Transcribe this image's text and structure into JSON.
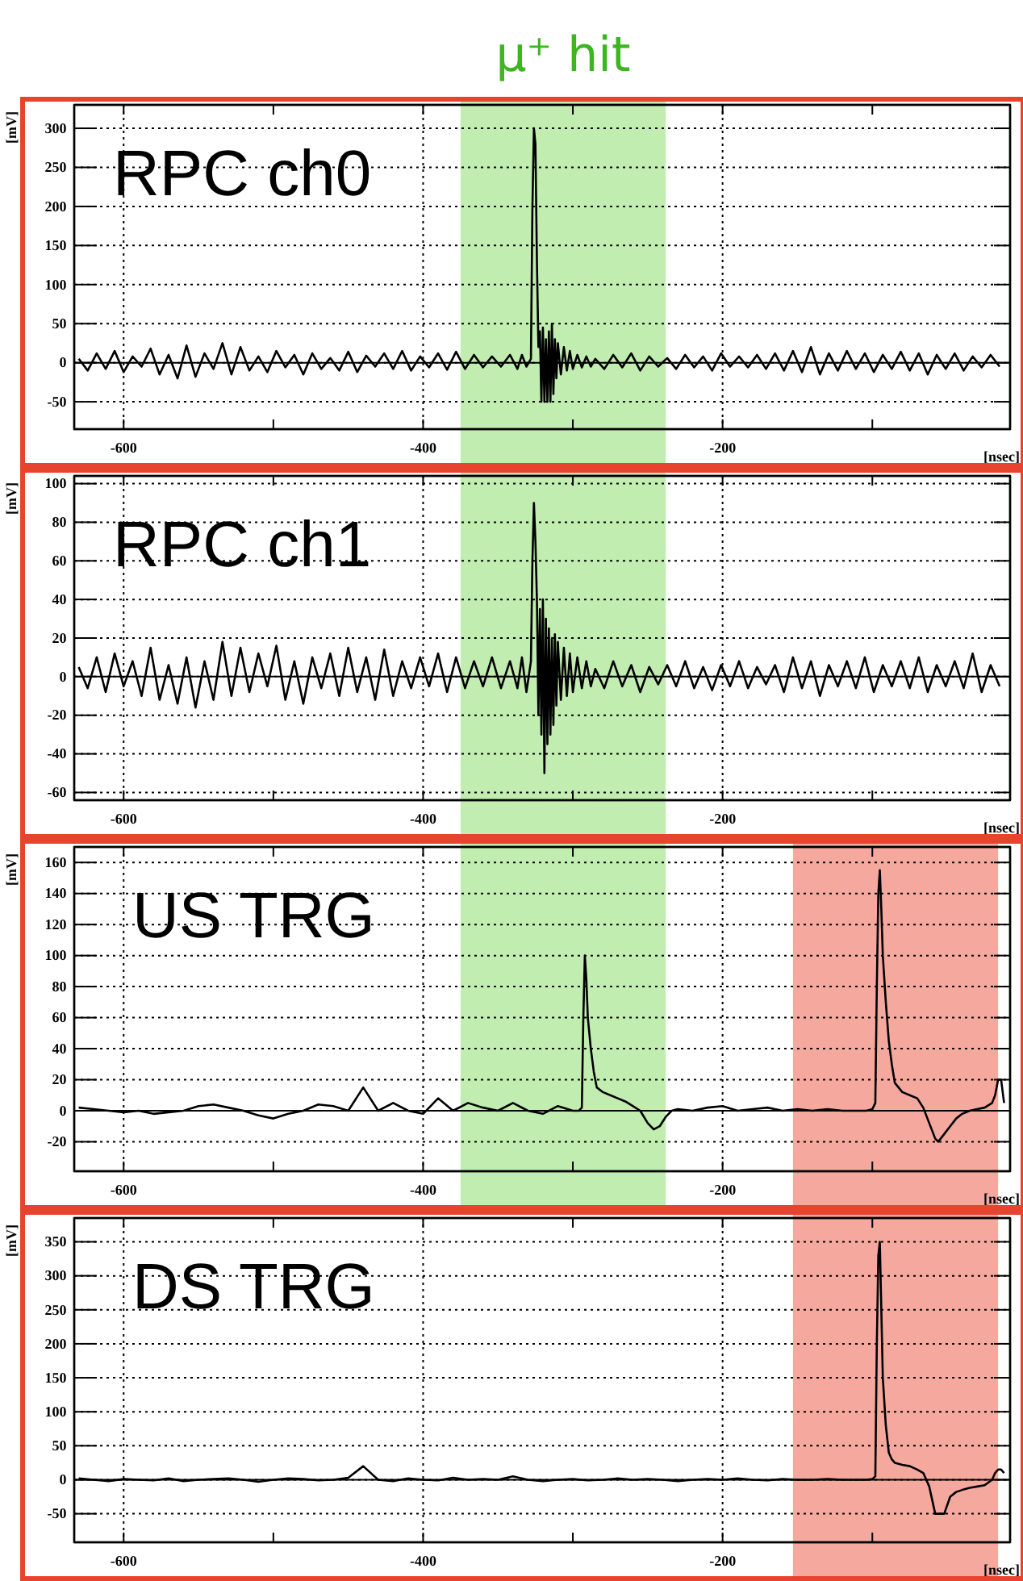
{
  "chart_data": [
    {
      "type": "line",
      "title": "RPC ch0",
      "xlabel": "[nsec]",
      "ylabel": "[mV]",
      "grid": true,
      "xlim": [
        -633,
        -8
      ],
      "ylim": [
        -85,
        330
      ],
      "xticks": [
        -600,
        {
          "value": -500,
          "label": null
        },
        -400,
        {
          "value": -300,
          "label": null
        },
        -200,
        {
          "value": -100,
          "label": null
        }
      ],
      "yticks": [
        -50,
        0,
        50,
        100,
        150,
        200,
        250,
        300
      ],
      "bands": [
        {
          "axis": "x",
          "from": -375,
          "to": -238,
          "label": "μ⁺ hit",
          "color": "#c2edb0"
        }
      ],
      "x": [
        -630,
        -624,
        -618,
        -612,
        -606,
        -600,
        -594,
        -588,
        -582,
        -576,
        -570,
        -564,
        -558,
        -552,
        -546,
        -540,
        -534,
        -528,
        -522,
        -516,
        -510,
        -504,
        -498,
        -492,
        -486,
        -480,
        -474,
        -468,
        -462,
        -456,
        -450,
        -444,
        -438,
        -432,
        -426,
        -420,
        -414,
        -408,
        -402,
        -396,
        -390,
        -384,
        -378,
        -372,
        -366,
        -360,
        -354,
        -348,
        -342,
        -337,
        -334,
        -331,
        -328,
        -327,
        -326,
        -325,
        -324,
        -323,
        -322,
        -321,
        -320,
        -319,
        -318,
        -317,
        -316,
        -315,
        -314,
        -313,
        -312,
        -311,
        -310,
        -308,
        -306,
        -304,
        -302,
        -300,
        -297,
        -294,
        -291,
        -288,
        -285,
        -279,
        -273,
        -267,
        -261,
        -255,
        -249,
        -243,
        -237,
        -231,
        -225,
        -219,
        -213,
        -207,
        -201,
        -195,
        -189,
        -183,
        -177,
        -171,
        -165,
        -159,
        -153,
        -147,
        -141,
        -135,
        -129,
        -123,
        -117,
        -111,
        -105,
        -99,
        -93,
        -87,
        -81,
        -75,
        -69,
        -63,
        -57,
        -51,
        -45,
        -39,
        -33,
        -27,
        -21,
        -15
      ],
      "series": [
        {
          "color": "#000000",
          "values": [
            5,
            -10,
            12,
            -8,
            15,
            -12,
            8,
            -5,
            18,
            -15,
            10,
            -20,
            22,
            -18,
            12,
            -8,
            25,
            -15,
            20,
            -10,
            8,
            -12,
            15,
            -6,
            10,
            -15,
            12,
            -8,
            6,
            -10,
            14,
            -12,
            9,
            -5,
            12,
            -8,
            15,
            -10,
            8,
            -6,
            12,
            -9,
            14,
            -8,
            10,
            -6,
            8,
            -5,
            10,
            -8,
            10,
            -5,
            5,
            200,
            300,
            280,
            130,
            20,
            40,
            -50,
            45,
            -50,
            30,
            -50,
            40,
            -50,
            50,
            -40,
            30,
            -20,
            25,
            -15,
            20,
            -10,
            15,
            -8,
            10,
            -6,
            8,
            -5,
            5,
            -8,
            10,
            -6,
            12,
            -10,
            8,
            -5,
            6,
            -8,
            10,
            -6,
            8,
            -10,
            12,
            -5,
            8,
            -6,
            10,
            -8,
            12,
            -10,
            15,
            -12,
            20,
            -15,
            12,
            -10,
            15,
            -8,
            12,
            -12,
            10,
            -8,
            14,
            -10,
            12,
            -15,
            10,
            -8,
            12,
            -10,
            8,
            -6,
            10,
            -5
          ]
        }
      ]
    },
    {
      "type": "line",
      "title": "RPC ch1",
      "xlabel": "[nsec]",
      "ylabel": "[mV]",
      "grid": true,
      "xlim": [
        -633,
        -8
      ],
      "ylim": [
        -64,
        104
      ],
      "xticks": [
        -600,
        {
          "value": -500,
          "label": null
        },
        -400,
        {
          "value": -300,
          "label": null
        },
        -200,
        {
          "value": -100,
          "label": null
        }
      ],
      "yticks": [
        -60,
        -40,
        -20,
        0,
        20,
        40,
        60,
        80,
        100
      ],
      "bands": [
        {
          "axis": "x",
          "from": -375,
          "to": -238,
          "color": "#c2edb0"
        }
      ],
      "x": [
        -630,
        -624,
        -618,
        -612,
        -606,
        -600,
        -594,
        -588,
        -582,
        -576,
        -570,
        -564,
        -558,
        -552,
        -546,
        -540,
        -534,
        -528,
        -522,
        -516,
        -510,
        -504,
        -498,
        -492,
        -486,
        -480,
        -474,
        -468,
        -462,
        -456,
        -450,
        -444,
        -438,
        -432,
        -426,
        -420,
        -414,
        -408,
        -402,
        -396,
        -390,
        -384,
        -378,
        -372,
        -366,
        -360,
        -354,
        -348,
        -342,
        -337,
        -334,
        -331,
        -328,
        -327,
        -326,
        -325,
        -324,
        -323,
        -322,
        -321,
        -320,
        -319,
        -318,
        -317,
        -316,
        -315,
        -314,
        -313,
        -312,
        -311,
        -310,
        -308,
        -306,
        -304,
        -302,
        -300,
        -297,
        -294,
        -291,
        -288,
        -285,
        -279,
        -273,
        -267,
        -261,
        -255,
        -249,
        -243,
        -237,
        -231,
        -225,
        -219,
        -213,
        -207,
        -201,
        -195,
        -189,
        -183,
        -177,
        -171,
        -165,
        -159,
        -153,
        -147,
        -141,
        -135,
        -129,
        -123,
        -117,
        -111,
        -105,
        -99,
        -93,
        -87,
        -81,
        -75,
        -69,
        -63,
        -57,
        -51,
        -45,
        -39,
        -33,
        -27,
        -21,
        -15
      ],
      "series": [
        {
          "color": "#000000",
          "values": [
            5,
            -6,
            10,
            -8,
            12,
            -5,
            8,
            -10,
            15,
            -12,
            6,
            -14,
            10,
            -16,
            8,
            -12,
            18,
            -10,
            15,
            -8,
            12,
            -5,
            16,
            -12,
            8,
            -14,
            10,
            -6,
            12,
            -10,
            15,
            -8,
            10,
            -12,
            14,
            -10,
            8,
            -6,
            10,
            -5,
            12,
            -8,
            10,
            -6,
            8,
            -5,
            10,
            -6,
            8,
            -6,
            10,
            -8,
            8,
            60,
            90,
            70,
            40,
            -20,
            35,
            -30,
            40,
            -50,
            30,
            -35,
            25,
            -30,
            20,
            -25,
            22,
            -15,
            18,
            -12,
            15,
            -10,
            12,
            -8,
            10,
            -6,
            8,
            -5,
            4,
            -6,
            8,
            -5,
            6,
            -8,
            5,
            -4,
            6,
            -5,
            8,
            -6,
            5,
            -7,
            6,
            -5,
            8,
            -6,
            5,
            -4,
            6,
            -8,
            10,
            -6,
            8,
            -10,
            6,
            -5,
            8,
            -6,
            10,
            -8,
            6,
            -5,
            8,
            -6,
            10,
            -8,
            6,
            -5,
            8,
            -6,
            12,
            -8,
            6,
            -5
          ]
        }
      ]
    },
    {
      "type": "line",
      "title": "US TRG",
      "xlabel": "[nsec]",
      "ylabel": "[mV]",
      "grid": true,
      "xlim": [
        -633,
        -8
      ],
      "ylim": [
        -39,
        170
      ],
      "xticks": [
        -600,
        {
          "value": -500,
          "label": null
        },
        -400,
        {
          "value": -300,
          "label": null
        },
        -200,
        {
          "value": -100,
          "label": null
        }
      ],
      "yticks": [
        -20,
        0,
        20,
        40,
        60,
        80,
        100,
        120,
        140,
        160
      ],
      "bands": [
        {
          "axis": "x",
          "from": -375,
          "to": -238,
          "color": "#c2edb0"
        },
        {
          "axis": "x",
          "from": -153,
          "to": -16,
          "color": "#f5a89e"
        }
      ],
      "x": [
        -630,
        -620,
        -610,
        -600,
        -590,
        -580,
        -570,
        -560,
        -550,
        -540,
        -530,
        -520,
        -510,
        -500,
        -490,
        -480,
        -470,
        -460,
        -450,
        -440,
        -430,
        -420,
        -410,
        -400,
        -390,
        -380,
        -370,
        -360,
        -350,
        -340,
        -330,
        -320,
        -310,
        -300,
        -296,
        -294,
        -293,
        -292,
        -291,
        -290,
        -288,
        -286,
        -284,
        -280,
        -275,
        -270,
        -265,
        -260,
        -255,
        -250,
        -246,
        -242,
        -238,
        -234,
        -230,
        -220,
        -210,
        -200,
        -190,
        -180,
        -170,
        -160,
        -150,
        -140,
        -130,
        -120,
        -110,
        -104,
        -100,
        -98,
        -97,
        -96,
        -95,
        -94,
        -93,
        -91,
        -89,
        -87,
        -85,
        -80,
        -75,
        -70,
        -66,
        -62,
        -58,
        -56,
        -52,
        -48,
        -44,
        -40,
        -35,
        -30,
        -25,
        -20,
        -18,
        -16,
        -14,
        -12
      ],
      "series": [
        {
          "color": "#000000",
          "values": [
            2,
            1,
            0,
            -1,
            0,
            -2,
            -1,
            0,
            3,
            4,
            2,
            0,
            -3,
            -5,
            -2,
            0,
            4,
            3,
            0,
            15,
            0,
            5,
            0,
            -2,
            8,
            0,
            5,
            2,
            0,
            5,
            0,
            -2,
            3,
            0,
            0,
            2,
            60,
            100,
            85,
            60,
            40,
            25,
            15,
            12,
            10,
            8,
            6,
            3,
            0,
            -8,
            -12,
            -10,
            -4,
            0,
            1,
            0,
            2,
            3,
            0,
            1,
            2,
            0,
            1,
            0,
            1,
            0,
            0,
            0,
            1,
            5,
            80,
            140,
            155,
            130,
            100,
            70,
            45,
            30,
            18,
            12,
            10,
            8,
            2,
            -8,
            -18,
            -20,
            -15,
            -10,
            -5,
            -2,
            0,
            1,
            2,
            5,
            10,
            20,
            20,
            5
          ]
        }
      ]
    },
    {
      "type": "line",
      "title": "DS TRG",
      "xlabel": "[nsec]",
      "ylabel": "[mV]",
      "grid": true,
      "xlim": [
        -633,
        -8
      ],
      "ylim": [
        -92,
        385
      ],
      "xticks": [
        -600,
        {
          "value": -500,
          "label": null
        },
        -400,
        {
          "value": -300,
          "label": null
        },
        -200,
        {
          "value": -100,
          "label": null
        }
      ],
      "yticks": [
        -50,
        0,
        50,
        100,
        150,
        200,
        250,
        300,
        350
      ],
      "bands": [
        {
          "axis": "x",
          "from": -153,
          "to": -16,
          "color": "#f5a89e"
        }
      ],
      "x": [
        -630,
        -620,
        -610,
        -600,
        -590,
        -580,
        -570,
        -560,
        -550,
        -540,
        -530,
        -520,
        -510,
        -500,
        -490,
        -480,
        -470,
        -460,
        -450,
        -440,
        -430,
        -420,
        -410,
        -400,
        -390,
        -380,
        -370,
        -360,
        -350,
        -340,
        -330,
        -320,
        -310,
        -300,
        -290,
        -280,
        -270,
        -260,
        -250,
        -240,
        -230,
        -220,
        -210,
        -200,
        -190,
        -180,
        -170,
        -160,
        -150,
        -140,
        -130,
        -120,
        -110,
        -104,
        -100,
        -98,
        -97,
        -96,
        -95,
        -94,
        -93,
        -91,
        -89,
        -87,
        -85,
        -80,
        -75,
        -70,
        -66,
        -62,
        -58,
        -56,
        -52,
        -48,
        -44,
        -40,
        -35,
        -30,
        -25,
        -20,
        -18,
        -16,
        -14,
        -12
      ],
      "series": [
        {
          "color": "#000000",
          "values": [
            2,
            0,
            -2,
            1,
            0,
            -1,
            2,
            -2,
            0,
            1,
            2,
            0,
            -3,
            0,
            2,
            1,
            -1,
            0,
            3,
            20,
            0,
            -2,
            2,
            0,
            -1,
            3,
            0,
            1,
            0,
            5,
            0,
            -2,
            0,
            1,
            -1,
            0,
            2,
            0,
            1,
            0,
            -2,
            0,
            1,
            0,
            2,
            0,
            -1,
            1,
            0,
            0,
            1,
            0,
            0,
            0,
            1,
            5,
            200,
            330,
            350,
            250,
            150,
            80,
            40,
            30,
            25,
            22,
            20,
            15,
            10,
            -10,
            -50,
            -50,
            -50,
            -25,
            -18,
            -15,
            -12,
            -10,
            -8,
            0,
            10,
            15,
            15,
            10
          ]
        }
      ]
    }
  ]
}
